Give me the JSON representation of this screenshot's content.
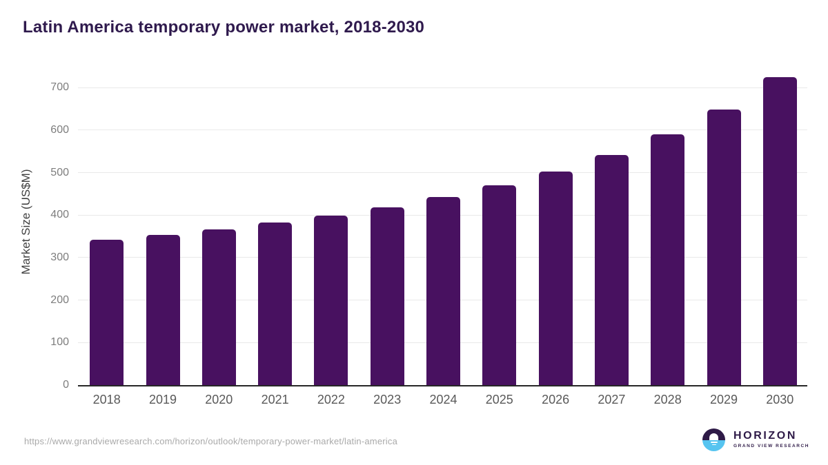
{
  "chart_data": {
    "type": "bar",
    "title": "Latin America temporary power market, 2018-2030",
    "categories": [
      "2018",
      "2019",
      "2020",
      "2021",
      "2022",
      "2023",
      "2024",
      "2025",
      "2026",
      "2027",
      "2028",
      "2029",
      "2030"
    ],
    "values": [
      342,
      354,
      367,
      382,
      398,
      418,
      442,
      470,
      503,
      542,
      590,
      648,
      725
    ],
    "xlabel": "",
    "ylabel": "Market Size (US$M)",
    "yticks": [
      0,
      100,
      200,
      300,
      400,
      500,
      600,
      700
    ],
    "ylim": [
      0,
      750
    ],
    "grid": "horizontal",
    "legend": "none",
    "bar_color": "#481160",
    "title_color": "#2f1a4d",
    "grid_color": "#e9e9e9",
    "axis_color": "#262626",
    "ytick_color": "#7d7d7d",
    "xtick_color": "#595959",
    "ylabel_color": "#3f3f3f"
  },
  "footer": {
    "source_url": "https://www.grandviewresearch.com/horizon/outlook/temporary-power-market/latin-america",
    "url_color": "#a9a9a9",
    "logo": {
      "brand": "HORIZON",
      "sub_brand": "GRAND VIEW RESEARCH",
      "circle_top_color": "#2e1a47",
      "circle_bottom_color": "#56c4f0",
      "text_color": "#2e1a47"
    }
  }
}
